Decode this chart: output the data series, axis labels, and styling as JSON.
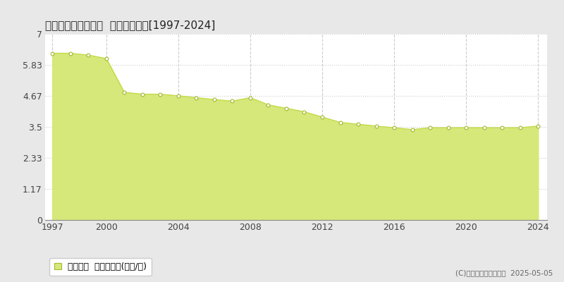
{
  "title": "磯谷郡蘭越町蘭越町  基準地価推移[1997-2024]",
  "years": [
    1997,
    1998,
    1999,
    2000,
    2001,
    2002,
    2003,
    2004,
    2005,
    2006,
    2007,
    2008,
    2009,
    2010,
    2011,
    2012,
    2013,
    2014,
    2015,
    2016,
    2017,
    2018,
    2019,
    2020,
    2021,
    2022,
    2023,
    2024
  ],
  "values": [
    6.27,
    6.27,
    6.2,
    6.07,
    4.8,
    4.73,
    4.73,
    4.67,
    4.6,
    4.53,
    4.47,
    4.6,
    4.33,
    4.2,
    4.07,
    3.87,
    3.67,
    3.6,
    3.53,
    3.47,
    3.4,
    3.47,
    3.47,
    3.47,
    3.47,
    3.47,
    3.47,
    3.53
  ],
  "line_color": "#c8d94a",
  "fill_color": "#d6e87a",
  "marker_color": "#ffffff",
  "marker_edge_color": "#a0b830",
  "marker_size": 3.5,
  "ylim": [
    0,
    7
  ],
  "yticks": [
    0,
    1.17,
    2.33,
    3.5,
    4.67,
    5.83,
    7
  ],
  "ytick_labels": [
    "0",
    "1.17",
    "2.33",
    "3.5",
    "4.67",
    "5.83",
    "7"
  ],
  "xticks": [
    1997,
    2000,
    2004,
    2008,
    2012,
    2016,
    2020,
    2024
  ],
  "outer_background_color": "#e8e8e8",
  "plot_background_color": "#ffffff",
  "grid_color": "#cccccc",
  "title_fontsize": 11,
  "tick_fontsize": 9,
  "legend_label": "基準地価  平均坪単価(万円/坪)",
  "copyright_text": "(C)土地価格ドットコム  2025-05-05"
}
